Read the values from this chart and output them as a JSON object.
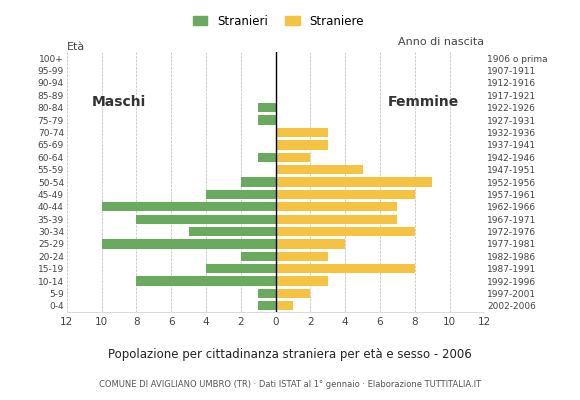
{
  "age_groups": [
    "100+",
    "95-99",
    "90-94",
    "85-89",
    "80-84",
    "75-79",
    "70-74",
    "65-69",
    "60-64",
    "55-59",
    "50-54",
    "45-49",
    "40-44",
    "35-39",
    "30-34",
    "25-29",
    "20-24",
    "15-19",
    "10-14",
    "5-9",
    "0-4"
  ],
  "birth_years": [
    "1906 o prima",
    "1907-1911",
    "1912-1916",
    "1917-1921",
    "1922-1926",
    "1927-1931",
    "1932-1936",
    "1937-1941",
    "1942-1946",
    "1947-1951",
    "1952-1956",
    "1957-1961",
    "1962-1966",
    "1967-1971",
    "1972-1976",
    "1977-1981",
    "1982-1986",
    "1987-1991",
    "1992-1996",
    "1997-2001",
    "2002-2006"
  ],
  "males": [
    0,
    0,
    0,
    0,
    1,
    1,
    0,
    0,
    1,
    0,
    2,
    4,
    10,
    8,
    5,
    10,
    2,
    4,
    8,
    1,
    1
  ],
  "females": [
    0,
    0,
    0,
    0,
    0,
    0,
    3,
    3,
    2,
    5,
    9,
    8,
    7,
    7,
    8,
    4,
    3,
    8,
    3,
    2,
    1
  ],
  "male_color": "#6aaa5e",
  "female_color": "#f5c242",
  "title": "Popolazione per cittadinanza straniera per età e sesso - 2006",
  "subtitle": "COMUNE DI AVIGLIANO UMBRO (TR) · Dati ISTAT al 1° gennaio · Elaborazione TUTTITALIA.IT",
  "xlabel_left": "Età",
  "xlabel_right": "Anno di nascita",
  "legend_male": "Stranieri",
  "legend_female": "Straniere",
  "label_maschi": "Maschi",
  "label_femmine": "Femmine",
  "xlim": 12,
  "background_color": "#ffffff",
  "grid_color": "#bbbbbb"
}
